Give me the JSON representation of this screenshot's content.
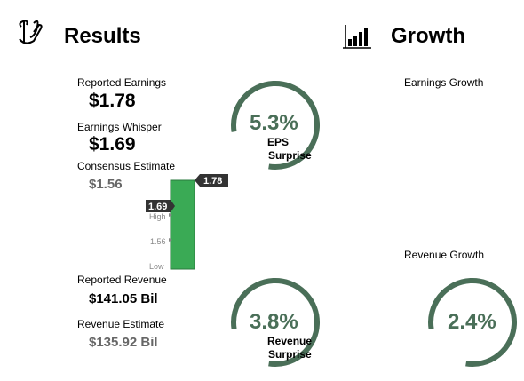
{
  "results": {
    "title": "Results",
    "icon": "money-hand-icon",
    "reported_earnings_label": "Reported Earnings",
    "reported_earnings_value": "$1.78",
    "whisper_label": "Earnings Whisper",
    "whisper_value": "$1.69",
    "consensus_label": "Consensus Estimate",
    "consensus_value": "$1.56",
    "reported_revenue_label": "Reported Revenue",
    "reported_revenue_value": "$141.05 Bil",
    "revenue_estimate_label": "Revenue Estimate",
    "revenue_estimate_value": "$135.92 Bil"
  },
  "eps_chart": {
    "tick_high": "High",
    "tick_mid": "1.56",
    "tick_low": "Low",
    "whisper_tag": "1.69",
    "reported_tag": "1.78",
    "bar_color": "#3aaa55"
  },
  "eps_surprise": {
    "value": "5.3%",
    "label_line1": "EPS",
    "label_line2": "Surprise",
    "fraction": 0.8
  },
  "revenue_surprise": {
    "value": "3.8%",
    "label_line1": "Revenue",
    "label_line2": "Surprise",
    "fraction": 0.8
  },
  "growth": {
    "title": "Growth",
    "icon": "bar-chart-icon",
    "earnings_growth_label": "Earnings Growth",
    "revenue_growth_label": "Revenue Growth",
    "revenue_growth_value": "2.4%",
    "revenue_growth_fraction": 0.8
  },
  "colors": {
    "ring": "#4a6f58",
    "tag_bg": "#333333"
  }
}
